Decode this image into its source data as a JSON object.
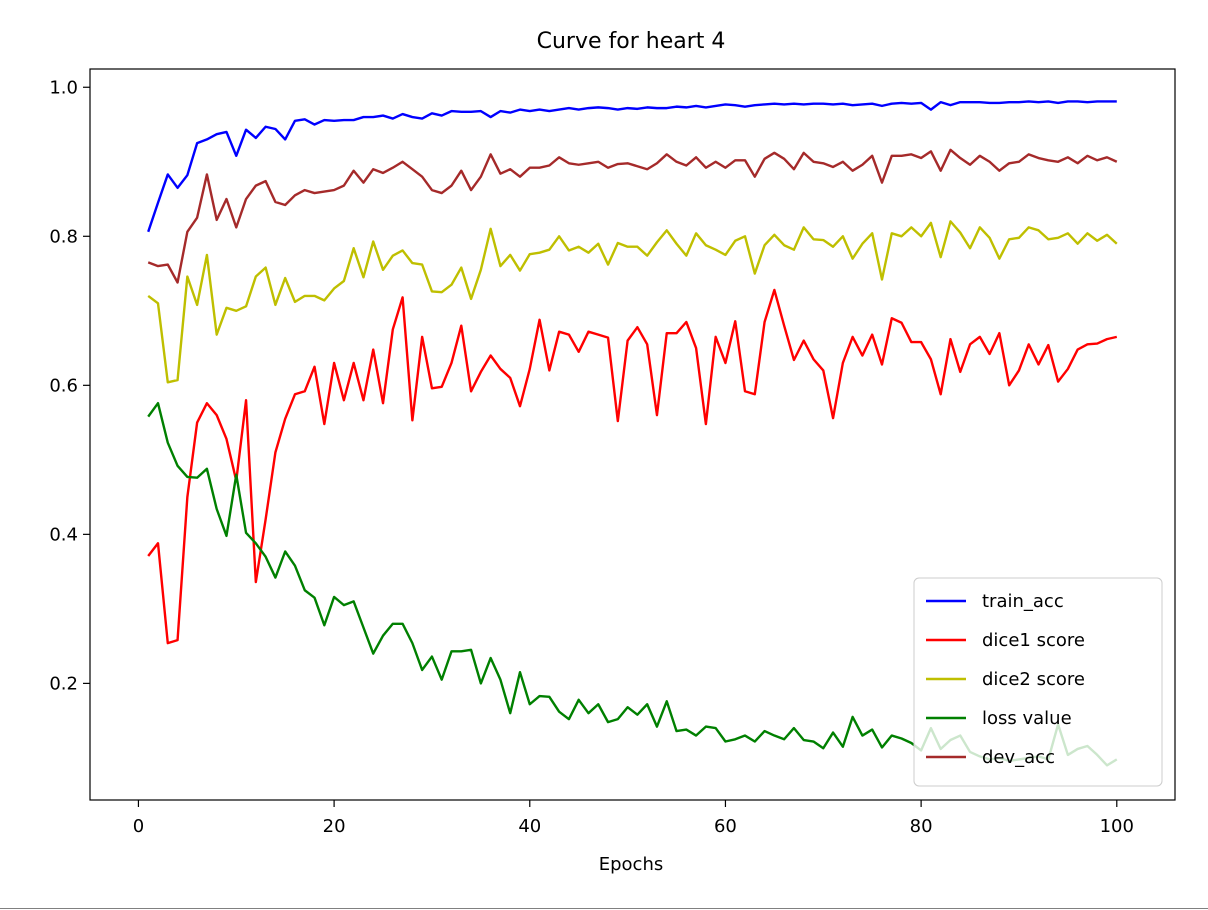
{
  "chart_data": {
    "type": "line",
    "title": "Curve for heart 4",
    "xlabel": "Epochs",
    "ylabel": "",
    "xlim": [
      -4.95,
      105.95
    ],
    "ylim": [
      0.0435,
      1.0245
    ],
    "xticks": [
      0,
      20,
      40,
      60,
      80,
      100
    ],
    "yticks": [
      0.2,
      0.4,
      0.6,
      0.8,
      1.0
    ],
    "xtick_labels": [
      "0",
      "20",
      "40",
      "60",
      "80",
      "100"
    ],
    "ytick_labels": [
      "0.2",
      "0.4",
      "0.6",
      "0.8",
      "1.0"
    ],
    "grid": false,
    "legend_position": "lower-right",
    "x": [
      1,
      2,
      3,
      4,
      5,
      6,
      7,
      8,
      9,
      10,
      11,
      12,
      13,
      14,
      15,
      16,
      17,
      18,
      19,
      20,
      21,
      22,
      23,
      24,
      25,
      26,
      27,
      28,
      29,
      30,
      31,
      32,
      33,
      34,
      35,
      36,
      37,
      38,
      39,
      40,
      41,
      42,
      43,
      44,
      45,
      46,
      47,
      48,
      49,
      50,
      51,
      52,
      53,
      54,
      55,
      56,
      57,
      58,
      59,
      60,
      61,
      62,
      63,
      64,
      65,
      66,
      67,
      68,
      69,
      70,
      71,
      72,
      73,
      74,
      75,
      76,
      77,
      78,
      79,
      80,
      81,
      82,
      83,
      84,
      85,
      86,
      87,
      88,
      89,
      90,
      91,
      92,
      93,
      94,
      95,
      96,
      97,
      98,
      99,
      100
    ],
    "series": [
      {
        "name": "train_acc",
        "color": "#0000ff",
        "values": [
          0.806,
          0.845,
          0.883,
          0.865,
          0.882,
          0.925,
          0.93,
          0.937,
          0.94,
          0.908,
          0.943,
          0.932,
          0.947,
          0.944,
          0.93,
          0.955,
          0.957,
          0.95,
          0.956,
          0.955,
          0.956,
          0.956,
          0.96,
          0.96,
          0.962,
          0.958,
          0.964,
          0.96,
          0.958,
          0.965,
          0.962,
          0.968,
          0.967,
          0.967,
          0.968,
          0.96,
          0.968,
          0.966,
          0.97,
          0.968,
          0.97,
          0.968,
          0.97,
          0.972,
          0.97,
          0.972,
          0.973,
          0.972,
          0.97,
          0.972,
          0.971,
          0.973,
          0.972,
          0.972,
          0.974,
          0.973,
          0.975,
          0.973,
          0.975,
          0.977,
          0.976,
          0.974,
          0.976,
          0.977,
          0.978,
          0.977,
          0.978,
          0.977,
          0.978,
          0.978,
          0.977,
          0.978,
          0.976,
          0.977,
          0.978,
          0.975,
          0.978,
          0.979,
          0.978,
          0.979,
          0.97,
          0.98,
          0.976,
          0.98,
          0.98,
          0.98,
          0.979,
          0.979,
          0.98,
          0.98,
          0.981,
          0.98,
          0.981,
          0.979,
          0.981,
          0.981,
          0.98,
          0.981,
          0.981,
          0.981
        ]
      },
      {
        "name": "dice1 score",
        "color": "#ff0000",
        "values": [
          0.371,
          0.388,
          0.254,
          0.258,
          0.45,
          0.55,
          0.576,
          0.56,
          0.528,
          0.472,
          0.58,
          0.336,
          0.42,
          0.51,
          0.555,
          0.588,
          0.592,
          0.625,
          0.548,
          0.63,
          0.58,
          0.63,
          0.58,
          0.648,
          0.576,
          0.675,
          0.718,
          0.553,
          0.665,
          0.596,
          0.598,
          0.63,
          0.68,
          0.592,
          0.618,
          0.64,
          0.622,
          0.61,
          0.572,
          0.622,
          0.688,
          0.62,
          0.672,
          0.668,
          0.645,
          0.672,
          0.668,
          0.664,
          0.552,
          0.66,
          0.678,
          0.655,
          0.56,
          0.67,
          0.67,
          0.685,
          0.65,
          0.548,
          0.665,
          0.63,
          0.686,
          0.592,
          0.588,
          0.685,
          0.728,
          0.68,
          0.634,
          0.66,
          0.635,
          0.62,
          0.556,
          0.63,
          0.665,
          0.64,
          0.668,
          0.628,
          0.69,
          0.684,
          0.658,
          0.658,
          0.635,
          0.588,
          0.662,
          0.618,
          0.655,
          0.665,
          0.642,
          0.67,
          0.6,
          0.62,
          0.655,
          0.628,
          0.654,
          0.605,
          0.622,
          0.648,
          0.655,
          0.656,
          0.662,
          0.665
        ]
      },
      {
        "name": "dice2 score",
        "color": "#bfbf00",
        "values": [
          0.72,
          0.71,
          0.604,
          0.607,
          0.746,
          0.708,
          0.775,
          0.668,
          0.704,
          0.7,
          0.706,
          0.746,
          0.758,
          0.708,
          0.744,
          0.712,
          0.72,
          0.72,
          0.714,
          0.73,
          0.74,
          0.784,
          0.745,
          0.793,
          0.755,
          0.774,
          0.781,
          0.764,
          0.762,
          0.726,
          0.725,
          0.735,
          0.758,
          0.716,
          0.755,
          0.81,
          0.76,
          0.775,
          0.754,
          0.776,
          0.778,
          0.782,
          0.8,
          0.781,
          0.786,
          0.778,
          0.79,
          0.762,
          0.791,
          0.786,
          0.786,
          0.774,
          0.792,
          0.808,
          0.79,
          0.774,
          0.804,
          0.788,
          0.782,
          0.775,
          0.794,
          0.8,
          0.75,
          0.788,
          0.802,
          0.788,
          0.782,
          0.812,
          0.796,
          0.795,
          0.786,
          0.8,
          0.77,
          0.79,
          0.804,
          0.742,
          0.804,
          0.8,
          0.812,
          0.8,
          0.818,
          0.772,
          0.82,
          0.805,
          0.784,
          0.812,
          0.798,
          0.77,
          0.796,
          0.798,
          0.812,
          0.808,
          0.796,
          0.798,
          0.804,
          0.79,
          0.804,
          0.794,
          0.802,
          0.79
        ]
      },
      {
        "name": "loss value",
        "color": "#008000",
        "values": [
          0.558,
          0.576,
          0.523,
          0.492,
          0.477,
          0.476,
          0.488,
          0.434,
          0.398,
          0.48,
          0.402,
          0.388,
          0.37,
          0.342,
          0.377,
          0.358,
          0.325,
          0.315,
          0.278,
          0.316,
          0.305,
          0.31,
          0.275,
          0.24,
          0.264,
          0.28,
          0.28,
          0.254,
          0.218,
          0.236,
          0.205,
          0.243,
          0.243,
          0.245,
          0.2,
          0.234,
          0.205,
          0.16,
          0.215,
          0.172,
          0.183,
          0.182,
          0.162,
          0.152,
          0.178,
          0.16,
          0.172,
          0.148,
          0.152,
          0.168,
          0.158,
          0.172,
          0.142,
          0.176,
          0.136,
          0.138,
          0.13,
          0.142,
          0.14,
          0.122,
          0.125,
          0.13,
          0.122,
          0.136,
          0.13,
          0.125,
          0.14,
          0.124,
          0.122,
          0.113,
          0.134,
          0.115,
          0.155,
          0.13,
          0.138,
          0.114,
          0.13,
          0.126,
          0.12,
          0.11,
          0.14,
          0.112,
          0.124,
          0.13,
          0.108,
          0.102,
          0.098,
          0.1,
          0.096,
          0.098,
          0.1,
          0.102,
          0.098,
          0.145,
          0.104,
          0.112,
          0.116,
          0.104,
          0.09,
          0.098
        ]
      },
      {
        "name": "dev_acc",
        "color": "#a52a2a",
        "values": [
          0.765,
          0.76,
          0.762,
          0.738,
          0.806,
          0.825,
          0.883,
          0.822,
          0.85,
          0.812,
          0.85,
          0.868,
          0.874,
          0.846,
          0.842,
          0.855,
          0.862,
          0.858,
          0.86,
          0.862,
          0.868,
          0.888,
          0.872,
          0.89,
          0.885,
          0.892,
          0.9,
          0.89,
          0.88,
          0.862,
          0.858,
          0.868,
          0.888,
          0.862,
          0.88,
          0.91,
          0.884,
          0.89,
          0.88,
          0.892,
          0.892,
          0.895,
          0.906,
          0.898,
          0.896,
          0.898,
          0.9,
          0.892,
          0.897,
          0.898,
          0.894,
          0.89,
          0.898,
          0.91,
          0.9,
          0.895,
          0.906,
          0.892,
          0.9,
          0.892,
          0.902,
          0.902,
          0.88,
          0.904,
          0.912,
          0.904,
          0.89,
          0.912,
          0.9,
          0.898,
          0.893,
          0.9,
          0.888,
          0.896,
          0.908,
          0.872,
          0.908,
          0.908,
          0.91,
          0.905,
          0.914,
          0.888,
          0.916,
          0.905,
          0.896,
          0.908,
          0.9,
          0.888,
          0.898,
          0.9,
          0.91,
          0.905,
          0.902,
          0.9,
          0.906,
          0.898,
          0.908,
          0.902,
          0.906,
          0.9
        ]
      }
    ]
  }
}
